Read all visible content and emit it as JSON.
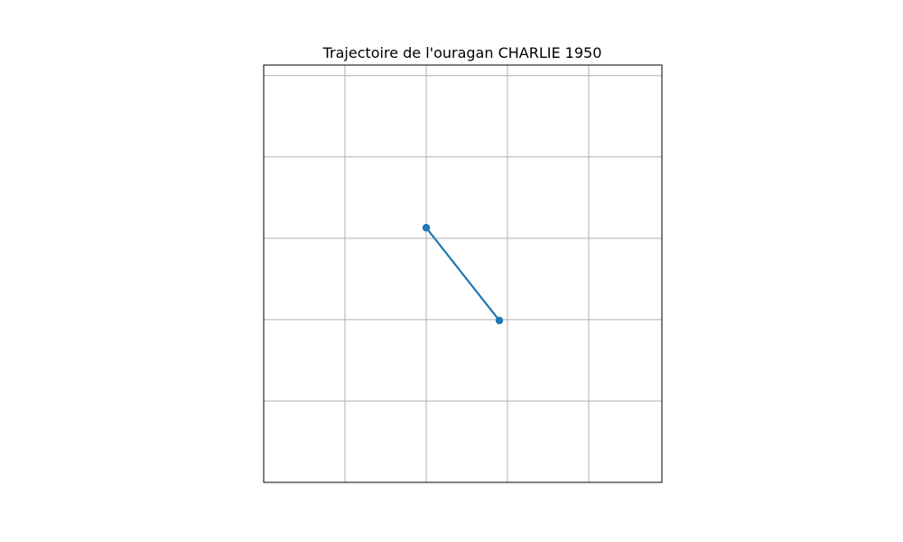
{
  "chart_data": {
    "type": "line",
    "title": "Trajectoire de l'ouragan CHARLIE 1950",
    "xlabel": "",
    "ylabel": "",
    "grid": true,
    "xlim": [
      0,
      4.9
    ],
    "ylim": [
      0,
      5.13
    ],
    "series": [
      {
        "x": [
          2.0,
          2.9
        ],
        "y": [
          3.13,
          1.99
        ]
      }
    ],
    "colors": {
      "line": "#1f77b4",
      "grid": "#b0b0b0",
      "axes": "#000000"
    }
  }
}
